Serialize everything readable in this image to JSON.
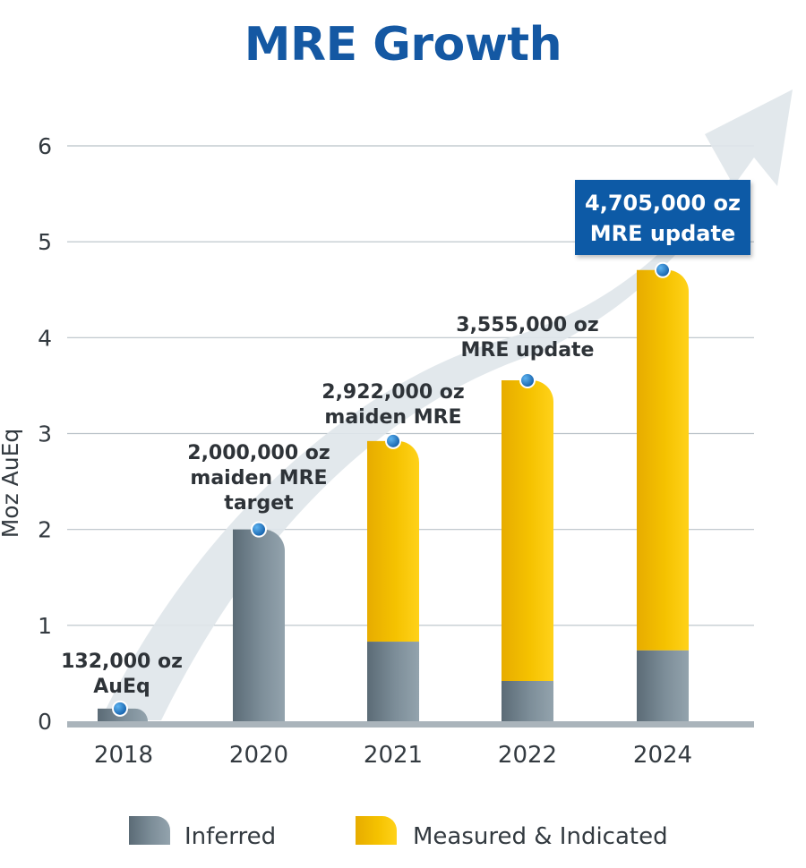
{
  "chart_data": {
    "type": "bar",
    "stacked": true,
    "title": "MRE Growth",
    "xlabel": "",
    "ylabel": "Moz AuEq",
    "ylim": [
      0,
      6
    ],
    "yticks": [
      "0",
      "1",
      "2",
      "3",
      "4",
      "5",
      "6"
    ],
    "grid": true,
    "categories": [
      "2018",
      "2020",
      "2021",
      "2022",
      "2024"
    ],
    "series": [
      {
        "name": "Inferred",
        "values": [
          0.132,
          2.0,
          0.83,
          0.42,
          0.74
        ],
        "color": "#6f7f8a"
      },
      {
        "name": "Measured & Indicated",
        "values": [
          0,
          0,
          2.092,
          3.135,
          3.965
        ],
        "color": "#f2bb06"
      }
    ],
    "totals": [
      0.132,
      2.0,
      2.922,
      3.555,
      4.705
    ],
    "annotations": [
      {
        "category": "2018",
        "lines": [
          "132,000 oz",
          "AuEq"
        ],
        "boxed": false
      },
      {
        "category": "2020",
        "lines": [
          "2,000,000 oz",
          "maiden MRE",
          "target"
        ],
        "boxed": false
      },
      {
        "category": "2021",
        "lines": [
          "2,922,000 oz",
          "maiden MRE"
        ],
        "boxed": false
      },
      {
        "category": "2022",
        "lines": [
          "3,555,000 oz",
          "MRE update"
        ],
        "boxed": false
      },
      {
        "category": "2024",
        "lines": [
          "4,705,000 oz",
          "MRE update"
        ],
        "boxed": true
      }
    ],
    "legend": [
      "Inferred",
      "Measured & Indicated"
    ],
    "legend_position": "bottom",
    "colors": {
      "title": "#1458a3",
      "box": "#0f5aa6",
      "marker": "#1a6fc0",
      "arrow": "#dfe5ea",
      "grid": "#b9c2c8"
    }
  }
}
